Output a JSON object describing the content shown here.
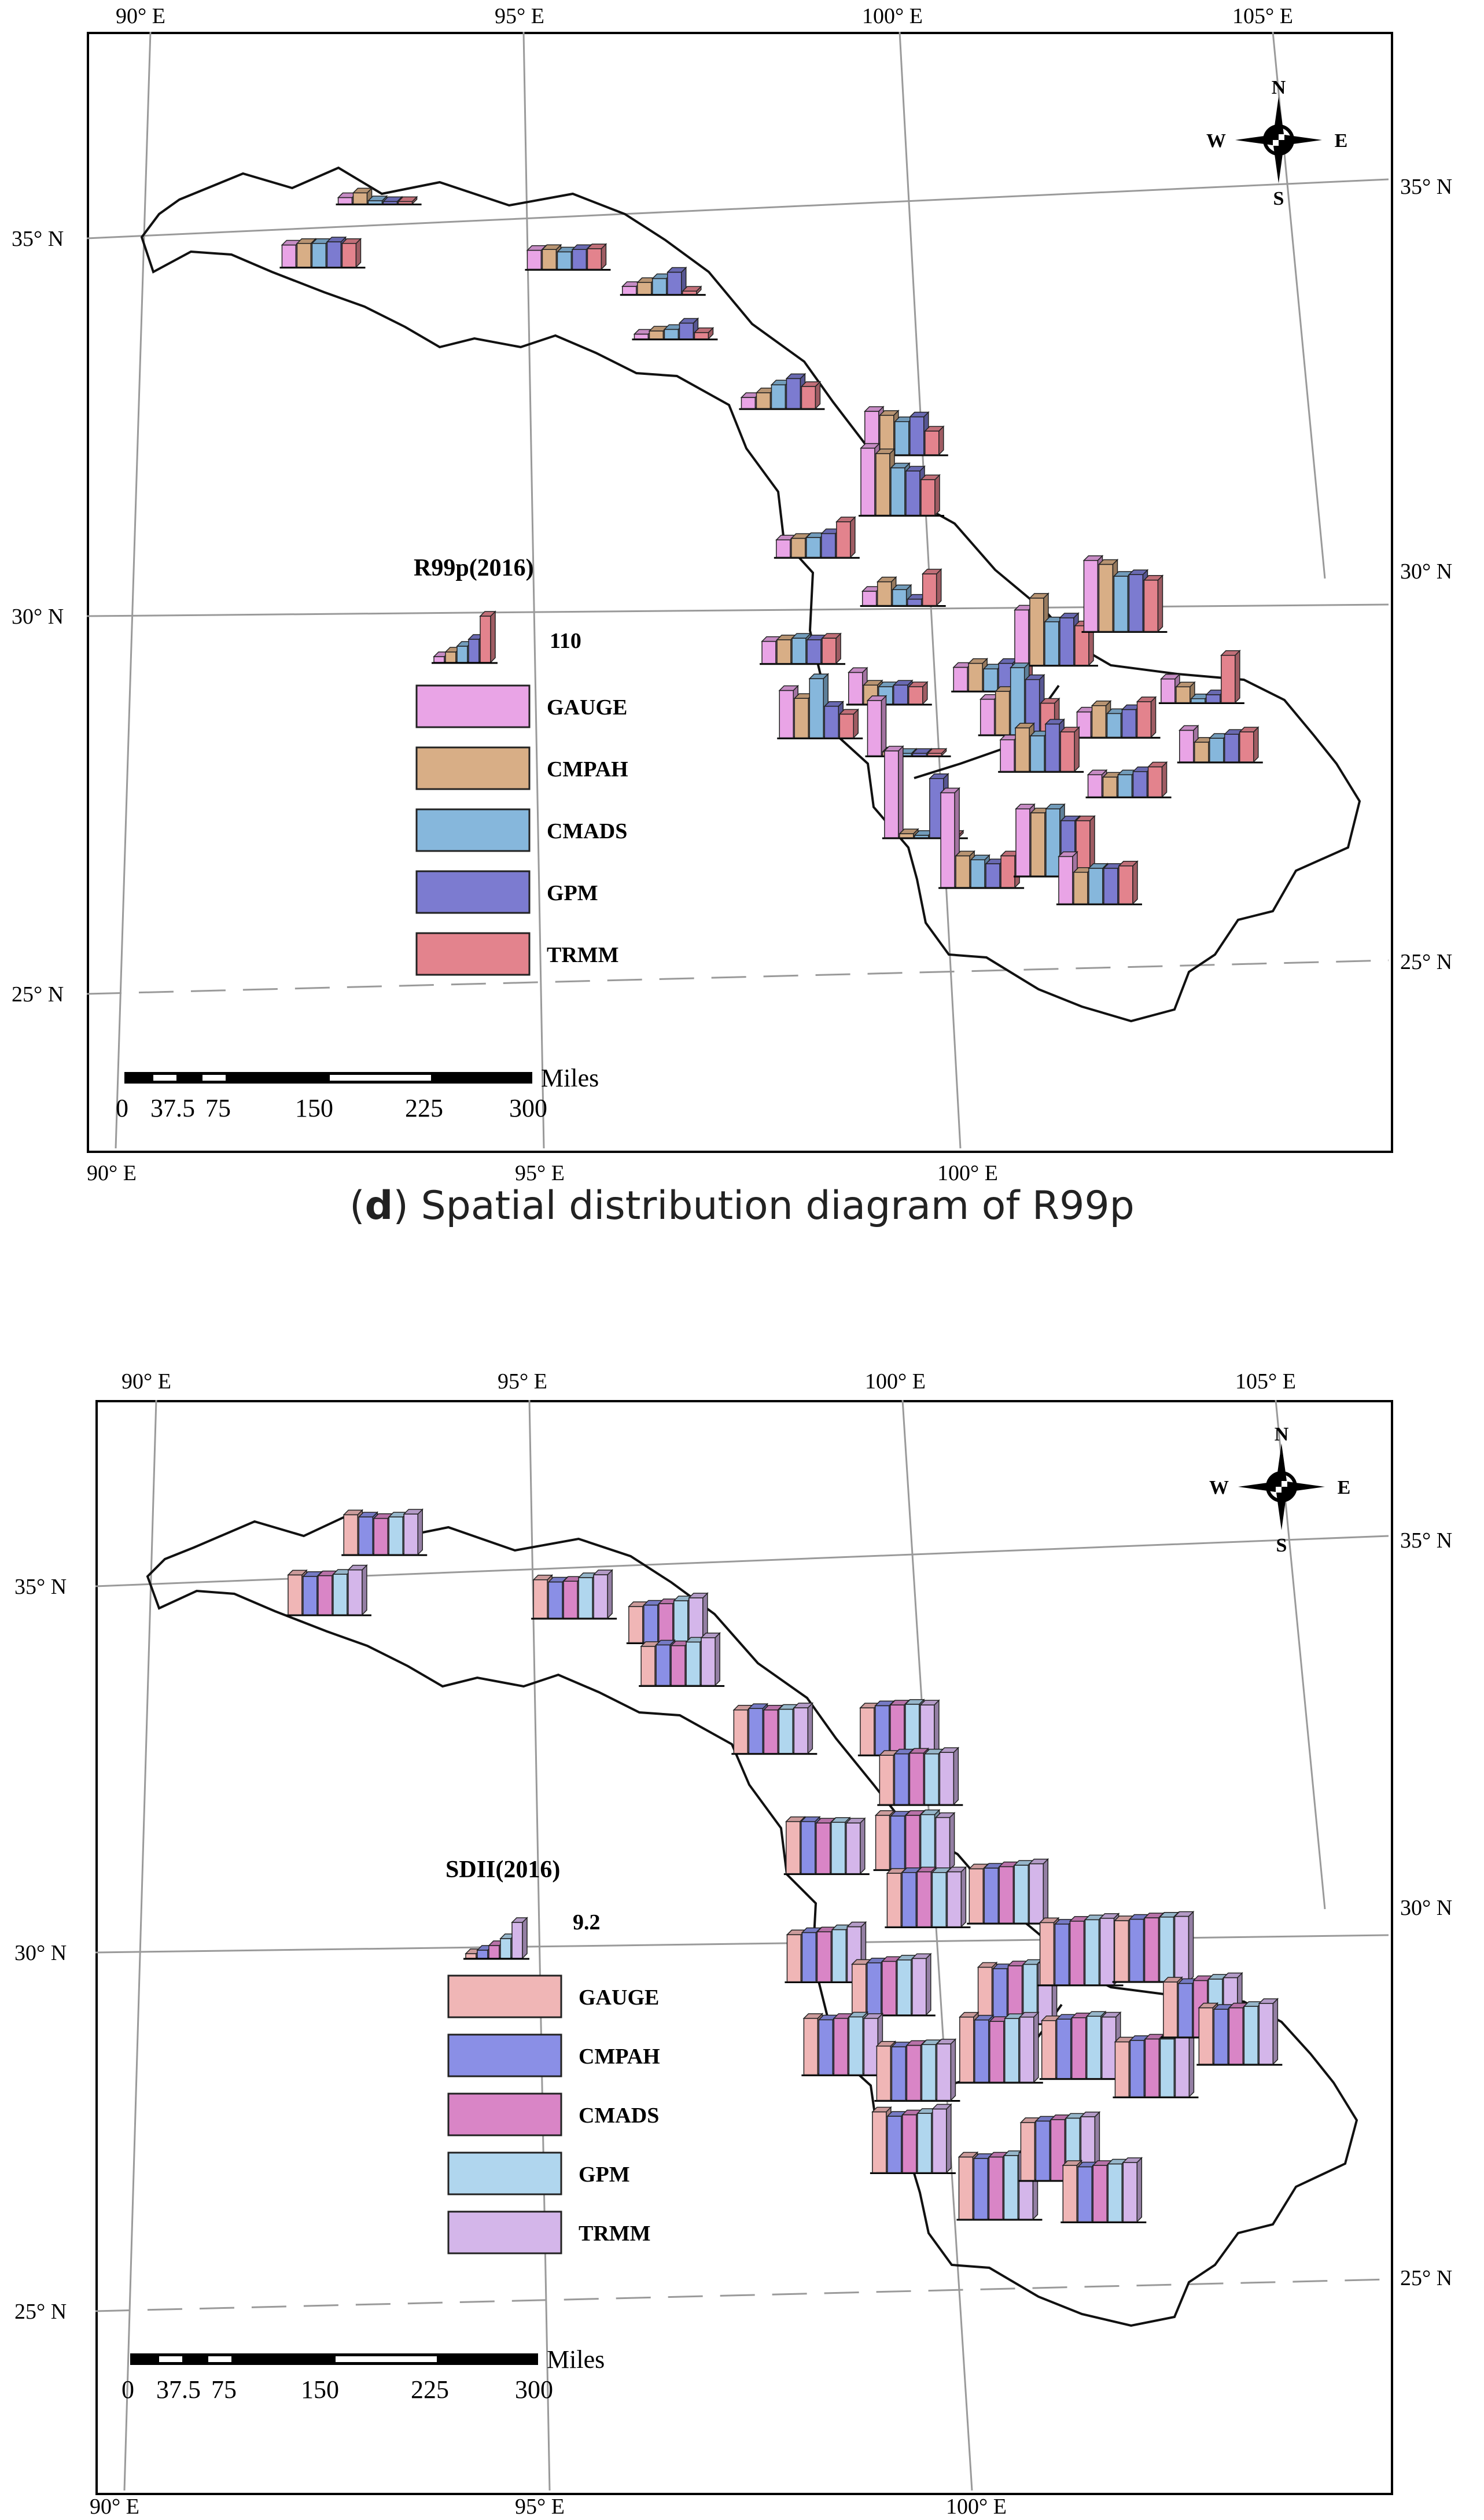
{
  "panels": [
    {
      "id": "d",
      "legend_title": "R99p(2016)",
      "legend_value": "110",
      "series": [
        {
          "name": "GAUGE",
          "color": "#e9a4e6"
        },
        {
          "name": "CMPAH",
          "color": "#d8ae86"
        },
        {
          "name": "CMADS",
          "color": "#86b7dc"
        },
        {
          "name": "GPM",
          "color": "#7c7bd0"
        },
        {
          "name": "TRMM",
          "color": "#e3838d"
        }
      ],
      "lon_top": [
        "90° E",
        "95° E",
        "100° E",
        "105° E"
      ],
      "lon_bottom": [
        "90° E",
        "95° E",
        "100° E"
      ],
      "lat_left": [
        "35° N",
        "30° N",
        "25° N"
      ],
      "lat_right": [
        "35° N",
        "30° N",
        "25° N"
      ],
      "scale_ticks": [
        "0",
        "37.5",
        "75",
        "150",
        "225",
        "300"
      ],
      "scale_unit": "Miles",
      "compass": {
        "n": "N",
        "s": "S",
        "e": "E",
        "w": "W"
      }
    },
    {
      "id": "e",
      "legend_title": "SDII(2016)",
      "legend_value": "9.2",
      "series": [
        {
          "name": "GAUGE",
          "color": "#f0b6b6"
        },
        {
          "name": "CMPAH",
          "color": "#8a8fe6"
        },
        {
          "name": "CMADS",
          "color": "#d985c6"
        },
        {
          "name": "GPM",
          "color": "#b0d6ee"
        },
        {
          "name": "TRMM",
          "color": "#d4b6ea"
        }
      ],
      "lon_top": [
        "90° E",
        "95° E",
        "100° E",
        "105° E"
      ],
      "lon_bottom": [
        "90° E",
        "95° E",
        "100° E"
      ],
      "lat_left": [
        "35° N",
        "30° N",
        "25° N"
      ],
      "lat_right": [
        "35° N",
        "30° N",
        "25° N"
      ],
      "scale_ticks": [
        "0",
        "37.5",
        "75",
        "150",
        "225",
        "300"
      ],
      "scale_unit": "Miles",
      "compass": {
        "n": "N",
        "s": "S",
        "e": "E",
        "w": "W"
      }
    }
  ],
  "caption": {
    "letter": "d",
    "paren_open": "(",
    "paren_close": ")",
    "text": " Spatial distribution diagram of R99p"
  },
  "stations_d": [
    {
      "lon": 93.0,
      "lat": 35.3,
      "v": [
        8,
        14,
        4,
        3,
        3
      ]
    },
    {
      "lon": 92.3,
      "lat": 34.5,
      "v": [
        28,
        30,
        30,
        32,
        30
      ]
    },
    {
      "lon": 95.6,
      "lat": 34.3,
      "v": [
        24,
        25,
        22,
        25,
        26
      ]
    },
    {
      "lon": 96.9,
      "lat": 33.9,
      "v": [
        10,
        15,
        20,
        28,
        4
      ]
    },
    {
      "lon": 97.1,
      "lat": 33.3,
      "v": [
        6,
        10,
        12,
        20,
        8
      ]
    },
    {
      "lon": 98.6,
      "lat": 32.3,
      "v": [
        14,
        20,
        30,
        38,
        28
      ]
    },
    {
      "lon": 100.3,
      "lat": 31.6,
      "v": [
        55,
        50,
        42,
        48,
        30
      ]
    },
    {
      "lon": 100.3,
      "lat": 30.8,
      "v": [
        85,
        78,
        60,
        56,
        45
      ]
    },
    {
      "lon": 99.2,
      "lat": 30.3,
      "v": [
        22,
        24,
        25,
        30,
        45
      ]
    },
    {
      "lon": 100.4,
      "lat": 29.6,
      "v": [
        18,
        30,
        20,
        8,
        40
      ]
    },
    {
      "lon": 99.1,
      "lat": 28.9,
      "v": [
        28,
        30,
        32,
        30,
        32
      ]
    },
    {
      "lon": 100.3,
      "lat": 28.3,
      "v": [
        40,
        24,
        22,
        24,
        22
      ]
    },
    {
      "lon": 99.4,
      "lat": 27.9,
      "v": [
        60,
        50,
        75,
        40,
        30
      ]
    },
    {
      "lon": 100.6,
      "lat": 27.6,
      "v": [
        70,
        5,
        3,
        3,
        3
      ]
    },
    {
      "lon": 101.7,
      "lat": 28.4,
      "v": [
        30,
        35,
        28,
        35,
        33
      ]
    },
    {
      "lon": 102.5,
      "lat": 28.7,
      "v": [
        70,
        85,
        55,
        60,
        50
      ]
    },
    {
      "lon": 103.4,
      "lat": 29.1,
      "v": [
        90,
        85,
        70,
        72,
        65
      ]
    },
    {
      "lon": 102.1,
      "lat": 27.8,
      "v": [
        45,
        55,
        85,
        70,
        40
      ]
    },
    {
      "lon": 103.4,
      "lat": 27.7,
      "v": [
        32,
        40,
        30,
        35,
        45
      ]
    },
    {
      "lon": 104.5,
      "lat": 28.1,
      "v": [
        30,
        20,
        5,
        10,
        60
      ]
    },
    {
      "lon": 104.8,
      "lat": 27.3,
      "v": [
        40,
        25,
        30,
        35,
        38
      ]
    },
    {
      "lon": 102.4,
      "lat": 27.3,
      "v": [
        40,
        55,
        45,
        60,
        50
      ]
    },
    {
      "lon": 103.6,
      "lat": 26.9,
      "v": [
        28,
        25,
        28,
        32,
        38
      ]
    },
    {
      "lon": 100.9,
      "lat": 26.5,
      "v": [
        110,
        5,
        3,
        75,
        3
      ]
    },
    {
      "lon": 101.7,
      "lat": 25.8,
      "v": [
        120,
        40,
        35,
        30,
        40
      ]
    },
    {
      "lon": 102.7,
      "lat": 25.9,
      "v": [
        85,
        80,
        85,
        70,
        70
      ]
    },
    {
      "lon": 103.3,
      "lat": 25.5,
      "v": [
        60,
        40,
        45,
        45,
        48
      ]
    }
  ],
  "stations_e": [
    {
      "lon": 93.0,
      "lat": 35.3,
      "v": [
        5.5,
        5.2,
        5.0,
        5.2,
        5.6
      ]
    },
    {
      "lon": 92.3,
      "lat": 34.5,
      "v": [
        5.5,
        5.3,
        5.4,
        5.6,
        6.2
      ]
    },
    {
      "lon": 95.6,
      "lat": 34.3,
      "v": [
        5.3,
        5.0,
        5.1,
        5.6,
        6.0
      ]
    },
    {
      "lon": 96.9,
      "lat": 33.9,
      "v": [
        5.0,
        5.2,
        5.4,
        5.8,
        6.2
      ]
    },
    {
      "lon": 97.1,
      "lat": 33.3,
      "v": [
        5.4,
        5.6,
        5.5,
        6.0,
        6.6
      ]
    },
    {
      "lon": 98.4,
      "lat": 32.3,
      "v": [
        6.0,
        6.2,
        6.0,
        6.1,
        6.3
      ]
    },
    {
      "lon": 100.1,
      "lat": 32.2,
      "v": [
        6.5,
        6.8,
        6.9,
        7.0,
        6.9
      ]
    },
    {
      "lon": 100.4,
      "lat": 31.5,
      "v": [
        6.8,
        7.0,
        7.1,
        7.0,
        7.2
      ]
    },
    {
      "lon": 99.2,
      "lat": 30.6,
      "v": [
        7.2,
        7.2,
        7.0,
        7.1,
        7.0
      ]
    },
    {
      "lon": 100.4,
      "lat": 30.6,
      "v": [
        7.5,
        7.4,
        7.5,
        7.6,
        7.2
      ]
    },
    {
      "lon": 100.6,
      "lat": 29.8,
      "v": [
        7.4,
        7.5,
        7.6,
        7.5,
        7.6
      ]
    },
    {
      "lon": 101.7,
      "lat": 29.8,
      "v": [
        7.5,
        7.6,
        7.8,
        8.0,
        8.2
      ]
    },
    {
      "lon": 99.3,
      "lat": 29.1,
      "v": [
        6.5,
        6.8,
        6.9,
        7.2,
        7.6
      ]
    },
    {
      "lon": 100.2,
      "lat": 28.6,
      "v": [
        7.0,
        7.2,
        7.4,
        7.6,
        7.8
      ]
    },
    {
      "lon": 101.9,
      "lat": 28.4,
      "v": [
        7.8,
        7.6,
        8.0,
        8.2,
        8.4
      ]
    },
    {
      "lon": 102.7,
      "lat": 28.9,
      "v": [
        8.6,
        8.4,
        8.8,
        9.0,
        9.2
      ]
    },
    {
      "lon": 103.7,
      "lat": 28.9,
      "v": [
        8.4,
        8.6,
        8.8,
        8.9,
        9.0
      ]
    },
    {
      "lon": 99.6,
      "lat": 27.8,
      "v": [
        7.8,
        7.6,
        7.8,
        8.0,
        7.8
      ]
    },
    {
      "lon": 100.6,
      "lat": 27.4,
      "v": [
        7.5,
        7.4,
        7.6,
        7.7,
        7.8
      ]
    },
    {
      "lon": 101.7,
      "lat": 27.6,
      "v": [
        9.0,
        8.6,
        8.4,
        8.8,
        9.0
      ]
    },
    {
      "lon": 102.8,
      "lat": 27.6,
      "v": [
        8.0,
        8.2,
        8.4,
        8.6,
        8.5
      ]
    },
    {
      "lon": 103.8,
      "lat": 27.3,
      "v": [
        7.6,
        7.8,
        8.0,
        8.0,
        8.4
      ]
    },
    {
      "lon": 104.4,
      "lat": 28.1,
      "v": [
        7.6,
        7.4,
        7.8,
        8.0,
        8.2
      ]
    },
    {
      "lon": 104.9,
      "lat": 27.7,
      "v": [
        7.8,
        7.6,
        7.8,
        8.0,
        8.4
      ]
    },
    {
      "lon": 100.6,
      "lat": 26.4,
      "v": [
        8.4,
        7.8,
        8.0,
        8.2,
        8.8
      ]
    },
    {
      "lon": 101.8,
      "lat": 25.7,
      "v": [
        8.6,
        8.4,
        8.6,
        8.8,
        9.2
      ]
    },
    {
      "lon": 102.6,
      "lat": 26.2,
      "v": [
        8.0,
        8.2,
        8.4,
        8.6,
        8.8
      ]
    },
    {
      "lon": 103.2,
      "lat": 25.6,
      "v": [
        7.8,
        7.6,
        7.8,
        8.0,
        8.2
      ]
    }
  ]
}
